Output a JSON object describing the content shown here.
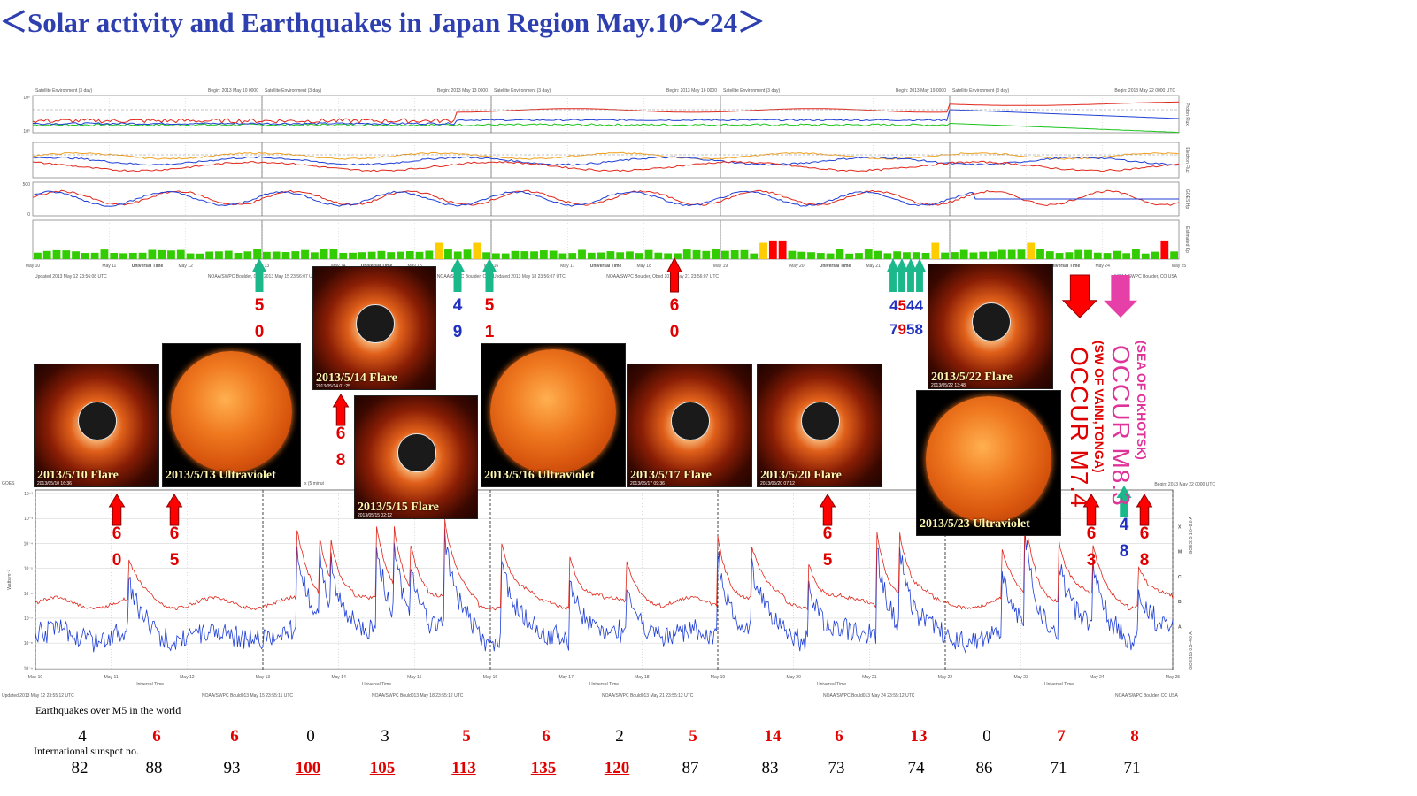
{
  "title": "＜Solar activity and Earthquakes in Japan Region May.10～24＞",
  "top_panels": {
    "headers": [
      {
        "left": "Satellite Environment (3 day)",
        "right": "Begin:  2013 May 10 0000"
      },
      {
        "left": "Satellite Environment (3 day)",
        "right": "Begin:  2013 May 13 0000"
      },
      {
        "left": "Satellite Environment (3 day)",
        "right": "Begin:  2013 May 16 0000"
      },
      {
        "left": "Satellite Environment (3 day)",
        "right": "Begin:  2013 May 19 0000"
      },
      {
        "left": "Satellite Environment (3 day)",
        "right": "Begin:  2013 May 22 0000 UTC"
      }
    ],
    "footers": [
      {
        "left": "Updated 2013 May 12 23:56:08 UTC",
        "right": "NOAA/SWPC Boulder, CO"
      },
      {
        "left": "2013 May 15 23:56:07 UTC",
        "right": "NOAA/SWPC Boulder, CO"
      },
      {
        "left": "Updated 2013 May 18 23:56:07 UTC",
        "right": "NOAA/SWPC Boulder, Obed 2013 May 21 23:56:07 UTC"
      },
      {
        "left": "",
        "right": ""
      },
      {
        "left": "",
        "right": "NOAA/SWPC Boulder, CO USA"
      }
    ],
    "right_labels": [
      "Proton Flux",
      "Electron Flux",
      "GOES Hp",
      "Estimated Kp"
    ],
    "x_ticks": [
      "May 10",
      "May 11",
      "May 12",
      "May 13",
      "May 14",
      "May 15",
      "May 16",
      "May 17",
      "May 18",
      "May 19",
      "May 20",
      "May 21",
      "May 22",
      "May 23",
      "May 24",
      "May 25"
    ],
    "universal_time": "Universal Time",
    "y_ticks_proton": [
      "10⁰",
      "10⁰"
    ],
    "y_ticks_hp": [
      "500",
      "0"
    ],
    "colors": {
      "red": "#e0261a",
      "blue": "#1f3fd6",
      "green": "#19c21a",
      "orange": "#f0a020",
      "kp_green": "#33cc00",
      "kp_yellow": "#ffcc00",
      "kp_red": "#ff0000"
    }
  },
  "bottom_panel": {
    "header_left": "GOES",
    "header_mid": "x (5 minut",
    "header_right": "Begin:  2013 May 22 0000 UTC",
    "y_label": "Watts m⁻²",
    "y_ticks": [
      "10⁻²",
      "10⁻³",
      "10⁻⁴",
      "10⁻⁵",
      "10⁻⁶",
      "10⁻⁷",
      "10⁻⁸",
      "10⁻⁹"
    ],
    "right_letters": [
      "X",
      "M",
      "C",
      "B",
      "A"
    ],
    "right_label_red": "GOES15 1.0–8.0 A",
    "right_label_blue": "GOES15 0.5–4.0 A",
    "footers": [
      "Updated 2013 May 12 23:55:12 UTC",
      "NOAA/SWPC Bould013 May 15 23:55:11 UTC",
      "NOAA/SWPC Bould013 May 18 23:55:12 UTC",
      "NOAA/SWPC Bould013 May 21 23:55:12 UTC",
      "NOAA/SWPC Bould013 May 24 23:55:12 UTC",
      "NOAA/SWPC Boulder, CO USA"
    ]
  },
  "images": [
    {
      "caption": "2013/5/10 Flare",
      "kind": "flare",
      "sub": "2013/05/10 16:36"
    },
    {
      "caption": "2013/5/13 Ultraviolet",
      "kind": "uv",
      "sub": ""
    },
    {
      "caption": "2013/5/14 Flare",
      "kind": "flare",
      "sub": "2013/05/14 01:25"
    },
    {
      "caption": "2013/5/15 Flare",
      "kind": "flare",
      "sub": "2013/05/15 02:12"
    },
    {
      "caption": "2013/5/16 Ultraviolet",
      "kind": "uv",
      "sub": ""
    },
    {
      "caption": "2013/5/17 Flare",
      "kind": "flare",
      "sub": "2013/05/17 09:36"
    },
    {
      "caption": "2013/5/20 Flare",
      "kind": "flare",
      "sub": "2013/05/20 07:12"
    },
    {
      "caption": "2013/5/22 Flare",
      "kind": "flare",
      "sub": "2013/05/22 13:48"
    },
    {
      "caption": "2013/5/23 Ultraviolet",
      "kind": "uv",
      "sub": ""
    }
  ],
  "top_arrows": [
    {
      "color": "green",
      "digits": [
        "5",
        "0"
      ],
      "digit_color": "red"
    },
    {
      "color": "green",
      "digits": [
        "4",
        "9"
      ],
      "digit_color": "blue"
    },
    {
      "color": "green",
      "digits": [
        "5",
        "1"
      ],
      "digit_color": "red"
    },
    {
      "color": "red",
      "digits": [
        "6",
        "0"
      ],
      "digit_color": "red"
    },
    {
      "color": "green",
      "digits": [
        "4544",
        "7958"
      ],
      "digit_color": "mixed"
    }
  ],
  "mid_arrows": [
    {
      "color": "red",
      "digits": [
        "6",
        "0"
      ],
      "digit_color": "red"
    },
    {
      "color": "red",
      "digits": [
        "6",
        "5"
      ],
      "digit_color": "red"
    },
    {
      "color": "red",
      "digits": [
        "6",
        "8"
      ],
      "digit_color": "red"
    },
    {
      "color": "red",
      "digits": [
        "6",
        "5"
      ],
      "digit_color": "red"
    },
    {
      "color": "red",
      "digits": [
        "6",
        "3"
      ],
      "digit_color": "red"
    },
    {
      "color": "green",
      "digits": [
        "4",
        "8"
      ],
      "digit_color": "blue"
    },
    {
      "color": "red",
      "digits": [
        "6",
        "8"
      ],
      "digit_color": "red"
    }
  ],
  "occur": {
    "m74": {
      "main": "OCCUR M7.4",
      "sub": "(SW OF VAINI,TONGA)"
    },
    "m83": {
      "main": "OCCUR M8.3",
      "sub": "(SEA OF OKHOTSK)"
    }
  },
  "eq_label": "Earthquakes over M5 in the world",
  "sunspot_label": "International sunspot no.",
  "chart_data": {
    "type": "table",
    "categories": [
      "May 10",
      "May 11",
      "May 12",
      "May 13",
      "May 14",
      "May 15",
      "May 16",
      "May 17",
      "May 18",
      "May 19",
      "May 20",
      "May 21",
      "May 22",
      "May 23",
      "May 24"
    ],
    "earthquakes": [
      4,
      6,
      6,
      0,
      3,
      5,
      6,
      2,
      5,
      14,
      6,
      13,
      0,
      7,
      8
    ],
    "earthquakes_highlight": [
      false,
      true,
      true,
      false,
      false,
      true,
      true,
      false,
      true,
      true,
      true,
      true,
      false,
      true,
      true
    ],
    "sunspots": [
      82,
      88,
      93,
      100,
      105,
      113,
      135,
      120,
      87,
      83,
      73,
      74,
      86,
      71,
      71
    ],
    "sunspots_highlight": [
      false,
      false,
      false,
      true,
      true,
      true,
      true,
      true,
      false,
      false,
      false,
      false,
      false,
      false,
      false
    ],
    "kp_estimated": [
      1,
      1,
      1,
      1,
      1,
      1,
      1,
      1,
      1,
      1,
      1,
      1,
      1,
      1,
      1
    ]
  }
}
